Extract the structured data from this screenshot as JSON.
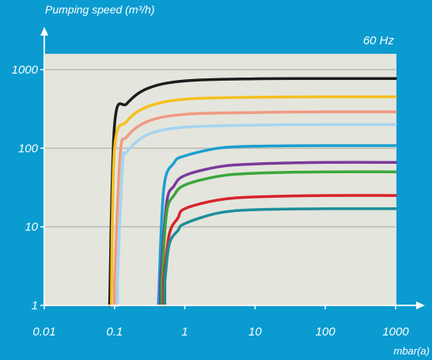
{
  "chart_data": {
    "type": "line",
    "ylabel": "Pumping speed (m³/h)",
    "xlabel": "mbar(a)",
    "annotation": "60 Hz",
    "xscale": "log",
    "yscale": "log",
    "xlim": [
      0.01,
      1000
    ],
    "ylim": [
      1,
      1000
    ],
    "x_ticks": [
      0.01,
      0.1,
      1,
      10,
      100,
      1000
    ],
    "x_tick_labels": [
      "0.01",
      "0.1",
      "1",
      "10",
      "100",
      "1000"
    ],
    "y_ticks": [
      1,
      10,
      100,
      1000
    ],
    "y_tick_labels": [
      "1",
      "10",
      "100",
      "1000"
    ],
    "grid": "horizontal",
    "legend": "none",
    "series": [
      {
        "color": "#1c1c1c",
        "x0": 0.085,
        "plateau": 770,
        "points": [
          [
            0.085,
            1
          ],
          [
            0.1,
            200
          ],
          [
            0.15,
            370
          ],
          [
            0.3,
            580
          ],
          [
            1,
            720
          ],
          [
            10,
            765
          ],
          [
            100,
            770
          ],
          [
            1000,
            770
          ]
        ]
      },
      {
        "color": "#f5bf1e",
        "x0": 0.09,
        "plateau": 450,
        "points": [
          [
            0.09,
            1
          ],
          [
            0.1,
            100
          ],
          [
            0.15,
            220
          ],
          [
            0.3,
            340
          ],
          [
            1,
            420
          ],
          [
            10,
            445
          ],
          [
            100,
            450
          ],
          [
            1000,
            450
          ]
        ]
      },
      {
        "color": "#f09a82",
        "x0": 0.1,
        "plateau": 290,
        "points": [
          [
            0.1,
            2
          ],
          [
            0.12,
            80
          ],
          [
            0.15,
            140
          ],
          [
            0.3,
            220
          ],
          [
            1,
            270
          ],
          [
            10,
            285
          ],
          [
            100,
            290
          ],
          [
            1000,
            290
          ]
        ]
      },
      {
        "color": "#a5d4f2",
        "x0": 0.11,
        "plateau": 200,
        "points": [
          [
            0.11,
            2
          ],
          [
            0.13,
            60
          ],
          [
            0.15,
            90
          ],
          [
            0.3,
            150
          ],
          [
            1,
            185
          ],
          [
            10,
            197
          ],
          [
            100,
            200
          ],
          [
            1000,
            200
          ]
        ]
      },
      {
        "color": "#1a9fd0",
        "x0": 0.42,
        "plateau": 108,
        "points": [
          [
            0.42,
            1
          ],
          [
            0.5,
            30
          ],
          [
            0.7,
            65
          ],
          [
            1,
            80
          ],
          [
            3,
            100
          ],
          [
            10,
            106
          ],
          [
            100,
            108
          ],
          [
            1000,
            108
          ]
        ]
      },
      {
        "color": "#7a3a9a",
        "x0": 0.45,
        "plateau": 66,
        "points": [
          [
            0.45,
            2
          ],
          [
            0.55,
            20
          ],
          [
            0.7,
            33
          ],
          [
            1,
            45
          ],
          [
            3,
            58
          ],
          [
            10,
            63
          ],
          [
            100,
            66
          ],
          [
            1000,
            66
          ]
        ]
      },
      {
        "color": "#3aa63a",
        "x0": 0.47,
        "plateau": 50,
        "points": [
          [
            0.47,
            2
          ],
          [
            0.55,
            15
          ],
          [
            0.7,
            25
          ],
          [
            1,
            34
          ],
          [
            3,
            44
          ],
          [
            10,
            48
          ],
          [
            100,
            50
          ],
          [
            1000,
            50
          ]
        ]
      },
      {
        "color": "#d8222a",
        "x0": 0.5,
        "plateau": 25,
        "points": [
          [
            0.5,
            2
          ],
          [
            0.6,
            8
          ],
          [
            0.8,
            13
          ],
          [
            1,
            17
          ],
          [
            3,
            22
          ],
          [
            10,
            24
          ],
          [
            100,
            25
          ],
          [
            1000,
            25
          ]
        ]
      },
      {
        "color": "#1e8e9a",
        "x0": 0.52,
        "plateau": 17,
        "points": [
          [
            0.52,
            2
          ],
          [
            0.6,
            6
          ],
          [
            0.8,
            9
          ],
          [
            1,
            11
          ],
          [
            3,
            15
          ],
          [
            10,
            16.5
          ],
          [
            100,
            17
          ],
          [
            1000,
            17
          ]
        ]
      }
    ]
  }
}
